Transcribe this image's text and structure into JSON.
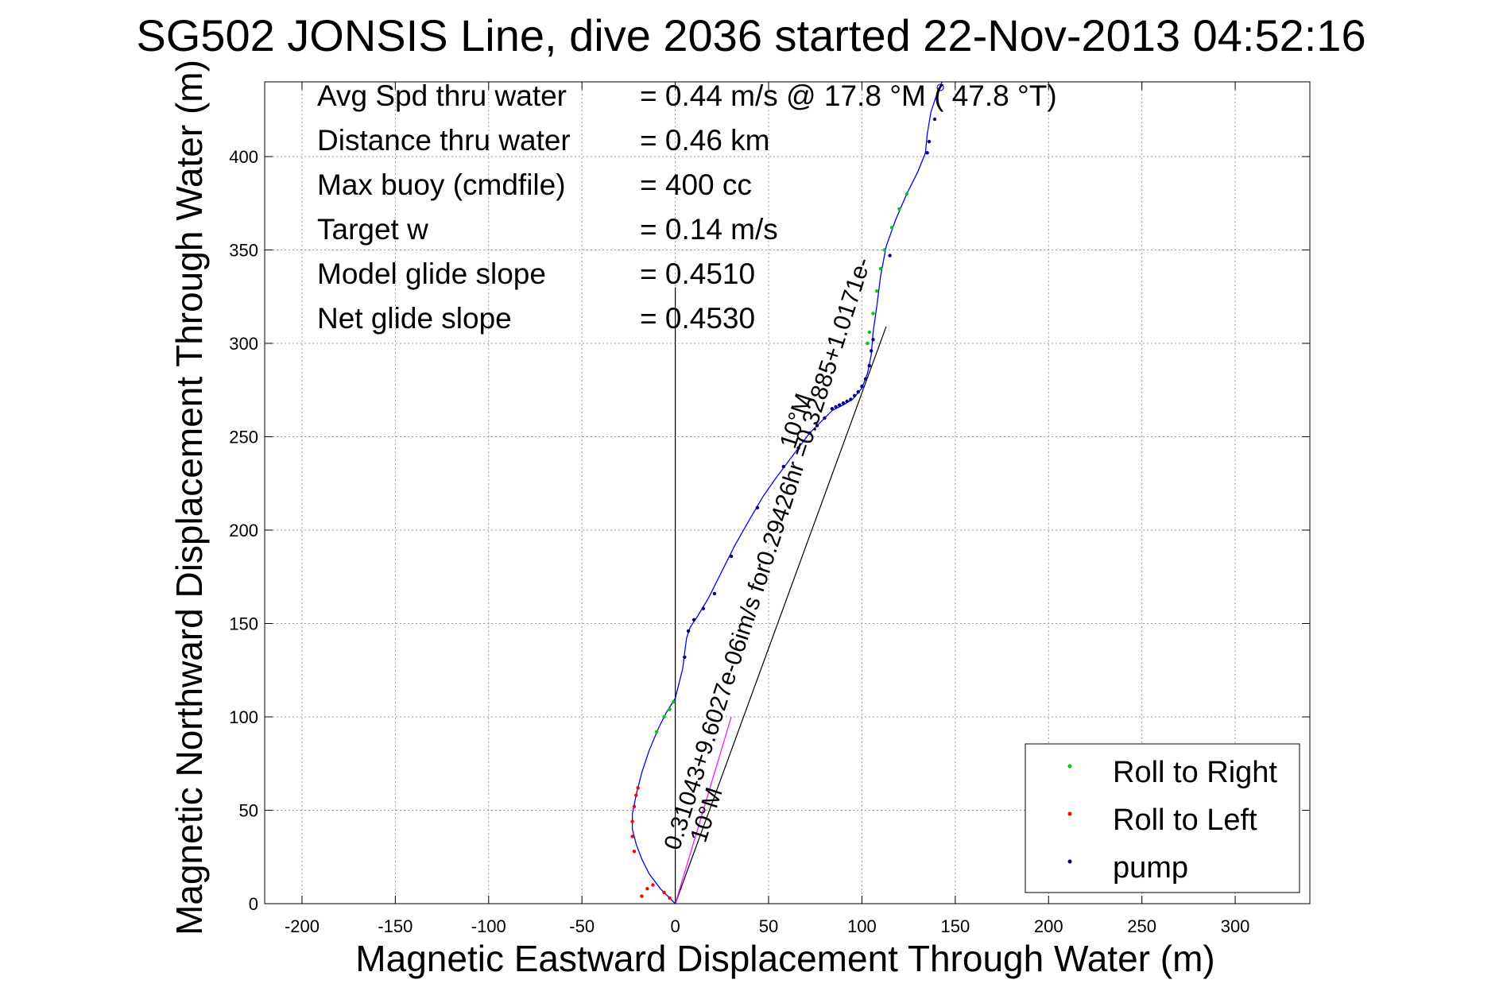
{
  "chart_data": {
    "type": "line",
    "title": "SG502 JONSIS Line, dive 2036 started 22-Nov-2013 04:52:16",
    "xlabel": "Magnetic Eastward Displacement Through Water (m)",
    "ylabel": "Magnetic Northward Displacement Through Water (m)",
    "xlim": [
      -220,
      340
    ],
    "ylim": [
      0,
      440
    ],
    "xticks": [
      -200,
      -150,
      -100,
      -50,
      0,
      50,
      100,
      150,
      200,
      250,
      300
    ],
    "yticks": [
      0,
      50,
      100,
      150,
      200,
      250,
      300,
      350,
      400
    ],
    "grid": true,
    "legend_position": "bottom-right",
    "info_table": [
      {
        "label": "Avg Spd thru water",
        "value": "=  0.44 m/s @  17.8 °M ( 47.8 °T)"
      },
      {
        "label": "Distance thru water",
        "value": "=  0.46 km"
      },
      {
        "label": "Max buoy (cmdfile)",
        "value": "= 400 cc"
      },
      {
        "label": "Target w",
        "value": "= 0.14 m/s"
      },
      {
        "label": "Model glide slope",
        "value": "= 0.4510"
      },
      {
        "label": "Net glide slope",
        "value": "= 0.4530"
      }
    ],
    "track": [
      [
        0,
        0
      ],
      [
        -8,
        8
      ],
      [
        -14,
        16
      ],
      [
        -18,
        24
      ],
      [
        -21,
        32
      ],
      [
        -23,
        40
      ],
      [
        -23,
        48
      ],
      [
        -21,
        58
      ],
      [
        -18,
        70
      ],
      [
        -14,
        82
      ],
      [
        -9,
        94
      ],
      [
        -5,
        102
      ],
      [
        0,
        110
      ],
      [
        2,
        118
      ],
      [
        4,
        126
      ],
      [
        5,
        134
      ],
      [
        6,
        142
      ],
      [
        8,
        148
      ],
      [
        12,
        154
      ],
      [
        18,
        164
      ],
      [
        25,
        178
      ],
      [
        32,
        192
      ],
      [
        40,
        206
      ],
      [
        47,
        218
      ],
      [
        54,
        228
      ],
      [
        60,
        236
      ],
      [
        66,
        244
      ],
      [
        72,
        252
      ],
      [
        78,
        258
      ],
      [
        84,
        264
      ],
      [
        90,
        267
      ],
      [
        95,
        270
      ],
      [
        100,
        276
      ],
      [
        103,
        284
      ],
      [
        105,
        294
      ],
      [
        106,
        306
      ],
      [
        108,
        320
      ],
      [
        110,
        336
      ],
      [
        113,
        352
      ],
      [
        118,
        366
      ],
      [
        124,
        380
      ],
      [
        130,
        392
      ],
      [
        134,
        402
      ],
      [
        135,
        412
      ],
      [
        137,
        424
      ],
      [
        141,
        436
      ],
      [
        143,
        440
      ]
    ],
    "series": [
      {
        "name": "Roll to Right",
        "color": "#00cc00",
        "points": [
          [
            -10,
            92
          ],
          [
            -6,
            100
          ],
          [
            -3,
            104
          ],
          [
            -1,
            108
          ],
          [
            103,
            300
          ],
          [
            104,
            306
          ],
          [
            106,
            316
          ],
          [
            108,
            328
          ],
          [
            110,
            340
          ],
          [
            112,
            350
          ],
          [
            116,
            362
          ],
          [
            120,
            372
          ],
          [
            124,
            380
          ]
        ]
      },
      {
        "name": "Roll to Left",
        "color": "#ff0000",
        "points": [
          [
            -22,
            28
          ],
          [
            -23,
            36
          ],
          [
            -23,
            44
          ],
          [
            -22,
            52
          ],
          [
            -21,
            58
          ],
          [
            -20,
            62
          ],
          [
            -18,
            4
          ],
          [
            -15,
            8
          ],
          [
            -12,
            10
          ],
          [
            -6,
            6
          ],
          [
            -3,
            3
          ]
        ]
      },
      {
        "name": "pump",
        "color": "#000080",
        "points": [
          [
            5,
            132
          ],
          [
            7,
            146
          ],
          [
            10,
            152
          ],
          [
            15,
            158
          ],
          [
            21,
            166
          ],
          [
            30,
            186
          ],
          [
            44,
            212
          ],
          [
            58,
            234
          ],
          [
            66,
            244
          ],
          [
            72,
            252
          ],
          [
            76,
            256
          ],
          [
            80,
            260
          ],
          [
            84,
            265
          ],
          [
            86,
            266
          ],
          [
            88,
            267
          ],
          [
            90,
            268
          ],
          [
            92,
            269
          ],
          [
            94,
            270
          ],
          [
            96,
            272
          ],
          [
            98,
            274
          ],
          [
            100,
            277
          ],
          [
            102,
            281
          ],
          [
            104,
            288
          ],
          [
            105,
            296
          ],
          [
            106,
            302
          ],
          [
            115,
            347
          ],
          [
            135,
            402
          ],
          [
            136,
            408
          ],
          [
            139,
            420
          ]
        ]
      }
    ],
    "fit_lines": [
      {
        "points": [
          [
            0,
            0
          ],
          [
            113,
            309
          ]
        ],
        "color": "#000000"
      },
      {
        "points": [
          [
            0,
            0
          ],
          [
            0,
            330
          ]
        ],
        "color": "#000000"
      },
      {
        "points": [
          [
            0,
            0
          ],
          [
            30,
            100
          ]
        ],
        "color": "#ff00ff"
      }
    ],
    "point_marker": [
      142,
      437
    ],
    "annotations": [
      {
        "text": "0.31043+9.6027e-06im/s for0.29426hr =0.32885+1.0171e-",
        "x": 2,
        "y": 28,
        "angle": -72
      },
      {
        "text": "10°M",
        "x": 16,
        "y": 32,
        "angle": -72
      },
      {
        "text": "10°M",
        "x": 64,
        "y": 243,
        "angle": -72
      }
    ]
  }
}
